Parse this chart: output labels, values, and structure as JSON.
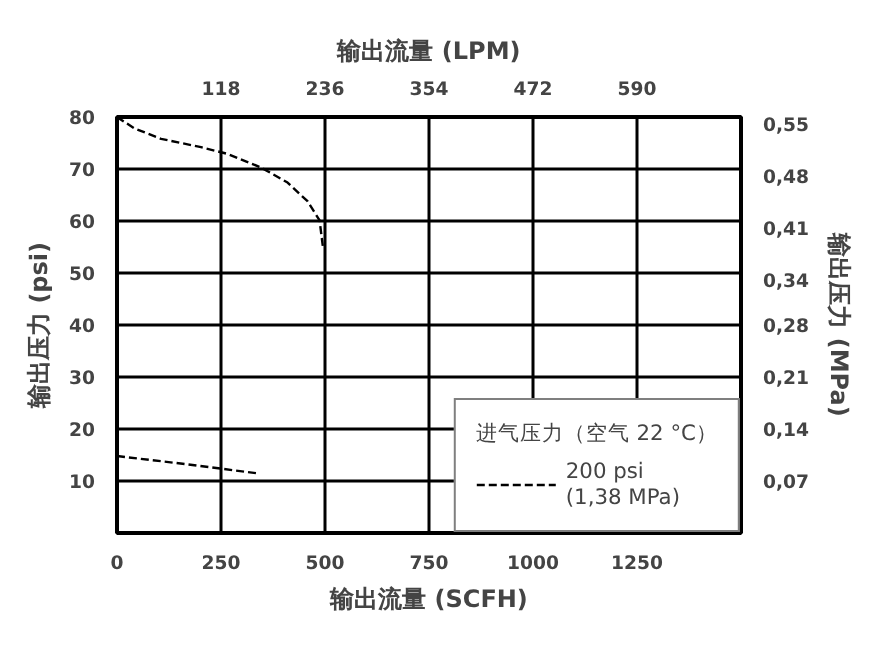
{
  "chart_data": {
    "type": "line",
    "xlabel": "输出流量 (SCFH)",
    "x2label": "输出流量 (LPM)",
    "ylabel": "输出压力 (psi)",
    "y2label": "输出压力 (MPa)",
    "legend_title": "进气压力（空气 22 °C）",
    "series": [
      {
        "name": "200 psi\n(1,38 MPa)",
        "color": "#000000",
        "x": [
          0,
          42,
          106,
          202,
          266,
          346,
          410,
          458,
          487,
          495,
          null,
          0,
          170,
          335
        ],
        "values": [
          80,
          77.8,
          75.8,
          74.2,
          72.9,
          70.3,
          67.4,
          63.8,
          60.1,
          55,
          null,
          14.8,
          13.2,
          11.5
        ]
      }
    ],
    "xlim": [
      0,
      1500
    ],
    "xticks": [
      0,
      250,
      500,
      750,
      1000,
      1250
    ],
    "x2lim": [
      0,
      708
    ],
    "x2ticks": [
      118,
      236,
      354,
      472,
      590
    ],
    "ylim": [
      0,
      80
    ],
    "yticks": [
      10,
      20,
      30,
      40,
      50,
      60,
      70,
      80
    ],
    "y2lim": [
      0,
      0.56
    ],
    "y2ticks": [
      {
        "value": 0.07,
        "label": "0,07"
      },
      {
        "value": 0.14,
        "label": "0,14"
      },
      {
        "value": 0.21,
        "label": "0,21"
      },
      {
        "value": 0.28,
        "label": "0,28"
      },
      {
        "value": 0.34,
        "label": "0,34"
      },
      {
        "value": 0.41,
        "label": "0,41"
      },
      {
        "value": 0.48,
        "label": "0,48"
      },
      {
        "value": 0.55,
        "label": "0,55"
      }
    ],
    "grid": true,
    "legend": "bottom right",
    "line_style": "dashed",
    "marker": "none"
  }
}
